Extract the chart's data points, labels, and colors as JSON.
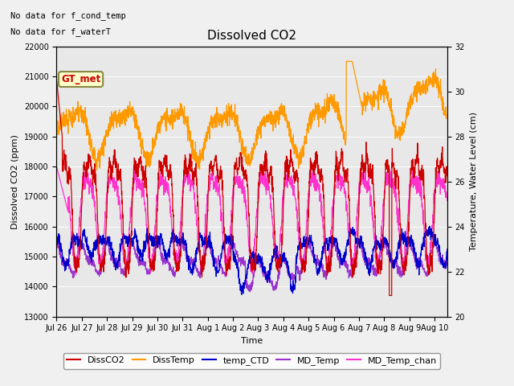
{
  "title": "Dissolved CO2",
  "xlabel": "Time",
  "ylabel_left": "Dissolved CO2 (ppm)",
  "ylabel_right": "Temperature, Water Level (cm)",
  "ylim_left": [
    13000,
    22000
  ],
  "ylim_right": [
    20,
    32
  ],
  "annotation_lines": [
    "No data for f_cond_temp",
    "No data for f_waterT"
  ],
  "legend_box_label": "GT_met",
  "legend_entries": [
    "DissCO2",
    "DissTemp",
    "temp_CTD",
    "MD_Temp",
    "MD_Temp_chan"
  ],
  "legend_colors": [
    "#cc0000",
    "#ff9900",
    "#0000cc",
    "#9933cc",
    "#ff33cc"
  ],
  "background_color": "#f0f0f0",
  "axes_facecolor": "#e8e8e8",
  "xtick_labels": [
    "Jul 26",
    "Jul 27",
    "Jul 28",
    "Jul 29",
    "Jul 30",
    "Jul 31",
    "Aug 1",
    "Aug 2",
    "Aug 3",
    "Aug 4",
    "Aug 5",
    "Aug 6",
    "Aug 7",
    "Aug 8",
    "Aug 9",
    "Aug 10"
  ],
  "xtick_positions": [
    0,
    1,
    2,
    3,
    4,
    5,
    6,
    7,
    8,
    9,
    10,
    11,
    12,
    13,
    14,
    15
  ]
}
